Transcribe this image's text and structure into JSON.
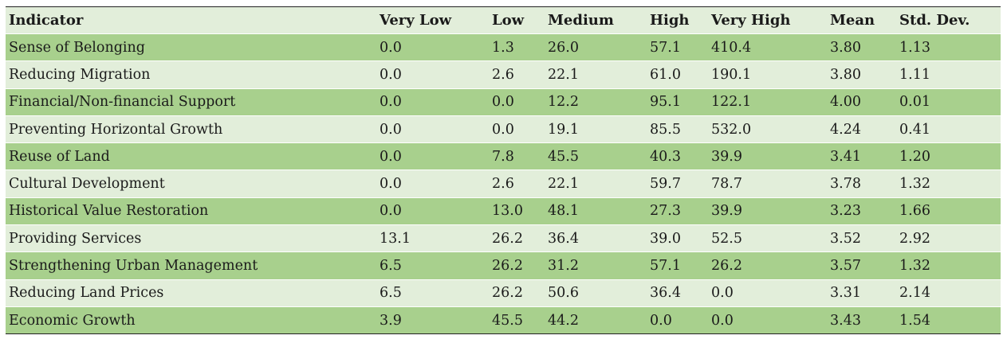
{
  "table": {
    "headers": [
      "Indicator",
      "Very Low",
      "Low",
      "Medium",
      "High",
      "Very High",
      "Mean",
      "Std. Dev."
    ],
    "rows": [
      [
        "Sense of Belonging",
        "0.0",
        "1.3",
        "26.0",
        "57.1",
        "410.4",
        "3.80",
        "1.13"
      ],
      [
        "Reducing Migration",
        "0.0",
        "2.6",
        "22.1",
        "61.0",
        "190.1",
        "3.80",
        "1.11"
      ],
      [
        "Financial/Non-financial Support",
        "0.0",
        "0.0",
        "12.2",
        "95.1",
        "122.1",
        "4.00",
        "0.01"
      ],
      [
        "Preventing Horizontal Growth",
        "0.0",
        "0.0",
        "19.1",
        "85.5",
        "532.0",
        "4.24",
        "0.41"
      ],
      [
        "Reuse of Land",
        "0.0",
        "7.8",
        "45.5",
        "40.3",
        "39.9",
        "3.41",
        "1.20"
      ],
      [
        "Cultural Development",
        "0.0",
        "2.6",
        "22.1",
        "59.7",
        "78.7",
        "3.78",
        "1.32"
      ],
      [
        "Historical Value Restoration",
        "0.0",
        "13.0",
        "48.1",
        "27.3",
        "39.9",
        "3.23",
        "1.66"
      ],
      [
        "Providing Services",
        "13.1",
        "26.2",
        "36.4",
        "39.0",
        "52.5",
        "3.52",
        "2.92"
      ],
      [
        "Strengthening Urban Management",
        "6.5",
        "26.2",
        "31.2",
        "57.1",
        "26.2",
        "3.57",
        "1.32"
      ],
      [
        "Reducing Land Prices",
        "6.5",
        "26.2",
        "50.6",
        "36.4",
        "0.0",
        "3.31",
        "2.14"
      ],
      [
        "Economic Growth",
        "3.9",
        "45.5",
        "44.2",
        "0.0",
        "0.0",
        "3.43",
        "1.54"
      ]
    ]
  },
  "colors": {
    "header_bg": "#e2eeda",
    "row_dark": "#a8d08d",
    "row_light": "#e2eeda"
  }
}
